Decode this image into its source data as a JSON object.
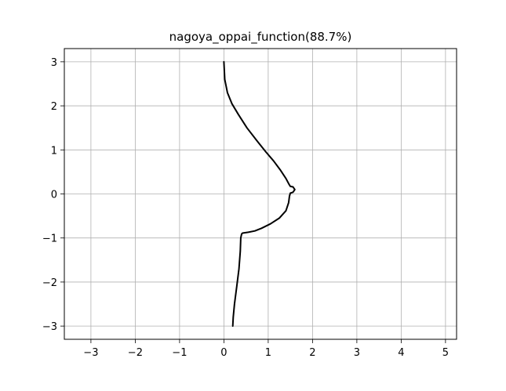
{
  "chart_data": {
    "type": "line",
    "title": "nagoya_oppai_function(88.7%)",
    "xlabel": "",
    "ylabel": "",
    "xlim": [
      -3.6,
      5.25
    ],
    "ylim": [
      -3.3,
      3.3
    ],
    "grid": true,
    "x_ticks": [
      -3,
      -2,
      -1,
      0,
      1,
      2,
      3,
      4,
      5
    ],
    "y_ticks": [
      -3,
      -2,
      -1,
      0,
      1,
      2,
      3
    ],
    "x_tick_labels": [
      "−3",
      "−2",
      "−1",
      "0",
      "1",
      "2",
      "3",
      "4",
      "5"
    ],
    "y_tick_labels": [
      "−3",
      "−2",
      "−1",
      "0",
      "1",
      "2",
      "3"
    ],
    "series": [
      {
        "color": "#000000",
        "points": [
          [
            0.0,
            3.0
          ],
          [
            0.02,
            2.6
          ],
          [
            0.08,
            2.3
          ],
          [
            0.18,
            2.05
          ],
          [
            0.33,
            1.8
          ],
          [
            0.52,
            1.5
          ],
          [
            0.75,
            1.2
          ],
          [
            0.95,
            0.95
          ],
          [
            1.12,
            0.75
          ],
          [
            1.27,
            0.55
          ],
          [
            1.4,
            0.35
          ],
          [
            1.47,
            0.22
          ],
          [
            1.5,
            0.17
          ],
          [
            1.56,
            0.16
          ],
          [
            1.6,
            0.1
          ],
          [
            1.56,
            0.04
          ],
          [
            1.5,
            0.02
          ],
          [
            1.48,
            -0.05
          ],
          [
            1.46,
            -0.2
          ],
          [
            1.4,
            -0.38
          ],
          [
            1.25,
            -0.55
          ],
          [
            1.05,
            -0.68
          ],
          [
            0.85,
            -0.78
          ],
          [
            0.7,
            -0.84
          ],
          [
            0.55,
            -0.87
          ],
          [
            0.42,
            -0.89
          ],
          [
            0.4,
            -0.91
          ],
          [
            0.38,
            -1.0
          ],
          [
            0.37,
            -1.3
          ],
          [
            0.34,
            -1.7
          ],
          [
            0.29,
            -2.1
          ],
          [
            0.24,
            -2.5
          ],
          [
            0.21,
            -2.8
          ],
          [
            0.2,
            -3.0
          ]
        ]
      }
    ]
  }
}
